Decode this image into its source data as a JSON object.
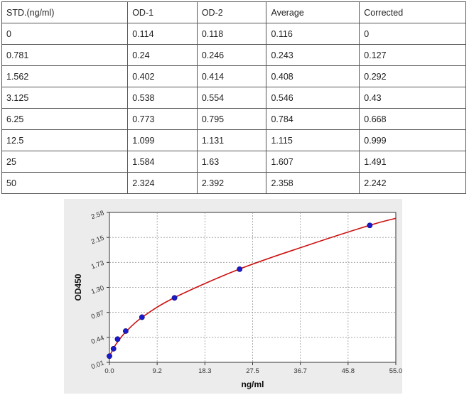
{
  "table": {
    "headers": [
      "STD.(ng/ml)",
      "OD-1",
      "OD-2",
      "Average",
      "Corrected"
    ],
    "rows": [
      [
        "0",
        "0.114",
        "0.118",
        "0.116",
        "0"
      ],
      [
        "0.781",
        "0.24",
        "0.246",
        "0.243",
        "0.127"
      ],
      [
        "1.562",
        "0.402",
        "0.414",
        "0.408",
        "0.292"
      ],
      [
        "3.125",
        "0.538",
        "0.554",
        "0.546",
        "0.43"
      ],
      [
        "6.25",
        "0.773",
        "0.795",
        "0.784",
        "0.668"
      ],
      [
        "12.5",
        "1.099",
        "1.131",
        "1.115",
        "0.999"
      ],
      [
        "25",
        "1.584",
        "1.63",
        "1.607",
        "1.491"
      ],
      [
        "50",
        "2.324",
        "2.392",
        "2.358",
        "2.242"
      ]
    ]
  },
  "chart_data": {
    "type": "scatter",
    "xlabel": "ng/ml",
    "ylabel": "OD450",
    "xlim": [
      0.0,
      55.0
    ],
    "ylim": [
      0.01,
      2.58
    ],
    "xticks": [
      "0.0",
      "9.2",
      "18.3",
      "27.5",
      "36.7",
      "45.8",
      "55.0"
    ],
    "yticks": [
      "0.01",
      "0.44",
      "0.87",
      "1.30",
      "1.73",
      "2.15",
      "2.58"
    ],
    "grid": true,
    "points": {
      "x": [
        0,
        0.781,
        1.562,
        3.125,
        6.25,
        12.5,
        25,
        50
      ],
      "y": [
        0.116,
        0.243,
        0.408,
        0.546,
        0.784,
        1.115,
        1.607,
        2.358
      ]
    },
    "fit_curve": {
      "x": [
        0,
        0.781,
        1.562,
        3.125,
        6.25,
        12.5,
        25,
        37.5,
        50,
        55
      ],
      "y": [
        0.11,
        0.25,
        0.36,
        0.53,
        0.78,
        1.12,
        1.61,
        2.0,
        2.36,
        2.48
      ]
    },
    "colors": {
      "points": "#1a1acc",
      "curve": "#cc1111",
      "grid": "#999999"
    }
  }
}
